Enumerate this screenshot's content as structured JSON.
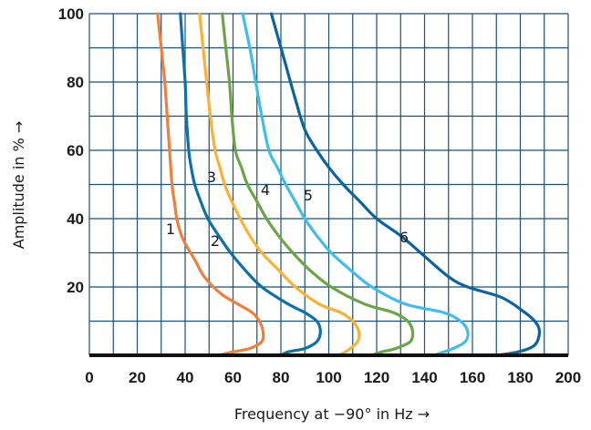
{
  "chart_data": {
    "type": "line",
    "xlabel": "Frequency at −90° in Hz →",
    "ylabel": "Amplitude in % →",
    "xlim": [
      0,
      200
    ],
    "ylim": [
      0,
      100
    ],
    "x_ticks": [
      "0",
      "20",
      "40",
      "60",
      "80",
      "100",
      "120",
      "140",
      "160",
      "180",
      "200"
    ],
    "y_ticks": [
      "20",
      "40",
      "60",
      "80",
      "100"
    ],
    "grid": true,
    "series": [
      {
        "label": "1",
        "color": "#f07f3c",
        "points": [
          [
            28.5,
            100
          ],
          [
            30,
            90
          ],
          [
            31.5,
            80
          ],
          [
            32.5,
            70
          ],
          [
            33.5,
            60
          ],
          [
            34.5,
            50
          ],
          [
            35.5,
            45
          ],
          [
            36.5,
            40
          ],
          [
            38.5,
            35
          ],
          [
            41,
            31.5
          ],
          [
            44,
            28
          ],
          [
            48,
            23
          ],
          [
            55,
            18
          ],
          [
            62,
            15
          ],
          [
            68,
            12.5
          ],
          [
            71,
            10
          ],
          [
            72.5,
            7
          ],
          [
            72,
            4
          ],
          [
            67,
            2
          ],
          [
            60,
            1
          ],
          [
            54,
            0
          ]
        ]
      },
      {
        "label": "2",
        "color": "#0b71a8",
        "points": [
          [
            38,
            100
          ],
          [
            39,
            90
          ],
          [
            40,
            80
          ],
          [
            40.5,
            70
          ],
          [
            41.5,
            60
          ],
          [
            42.5,
            55
          ],
          [
            44,
            50
          ],
          [
            46.5,
            45
          ],
          [
            49.5,
            40
          ],
          [
            54,
            35
          ],
          [
            59,
            30
          ],
          [
            65,
            25
          ],
          [
            72,
            20
          ],
          [
            83,
            15
          ],
          [
            90,
            12.5
          ],
          [
            95,
            10
          ],
          [
            96.5,
            7
          ],
          [
            95,
            4
          ],
          [
            90,
            2
          ],
          [
            83,
            1
          ],
          [
            80,
            0
          ]
        ]
      },
      {
        "label": "3",
        "color": "#f9b234",
        "points": [
          [
            46,
            100
          ],
          [
            47.5,
            90
          ],
          [
            49,
            80
          ],
          [
            50.5,
            70
          ],
          [
            52.5,
            60
          ],
          [
            54.5,
            55
          ],
          [
            56.5,
            50
          ],
          [
            59.5,
            45
          ],
          [
            63,
            40
          ],
          [
            67,
            35
          ],
          [
            72,
            30
          ],
          [
            79,
            25
          ],
          [
            86,
            20
          ],
          [
            96,
            15
          ],
          [
            105,
            12.5
          ],
          [
            110,
            10
          ],
          [
            112.5,
            7
          ],
          [
            112,
            4
          ],
          [
            108,
            1.5
          ],
          [
            104,
            0
          ]
        ]
      },
      {
        "label": "4",
        "color": "#6ca544",
        "points": [
          [
            55.5,
            100
          ],
          [
            57,
            90
          ],
          [
            58.5,
            80
          ],
          [
            59.5,
            70
          ],
          [
            61,
            60
          ],
          [
            63.5,
            55
          ],
          [
            66,
            50
          ],
          [
            70,
            45
          ],
          [
            74,
            40
          ],
          [
            79,
            35
          ],
          [
            85,
            30
          ],
          [
            92,
            25
          ],
          [
            101,
            20
          ],
          [
            115,
            15
          ],
          [
            127,
            12.5
          ],
          [
            133,
            10
          ],
          [
            135,
            7
          ],
          [
            134,
            4
          ],
          [
            128,
            2
          ],
          [
            122,
            1
          ],
          [
            118,
            0
          ]
        ]
      },
      {
        "label": "5",
        "color": "#3fbeed",
        "points": [
          [
            64,
            100
          ],
          [
            67,
            90
          ],
          [
            69.5,
            80
          ],
          [
            72,
            70
          ],
          [
            75,
            60
          ],
          [
            78.5,
            55
          ],
          [
            82,
            50
          ],
          [
            86,
            45
          ],
          [
            90,
            40
          ],
          [
            95,
            35
          ],
          [
            101,
            30
          ],
          [
            109,
            25
          ],
          [
            118,
            20
          ],
          [
            132,
            15
          ],
          [
            148,
            12.5
          ],
          [
            155,
            10
          ],
          [
            158,
            7
          ],
          [
            157,
            4
          ],
          [
            152,
            2
          ],
          [
            148,
            1
          ],
          [
            144,
            0
          ]
        ]
      },
      {
        "label": "6",
        "color": "#0b63a0",
        "points": [
          [
            76,
            100
          ],
          [
            78,
            95
          ],
          [
            82,
            85
          ],
          [
            86,
            75
          ],
          [
            90,
            66
          ],
          [
            95,
            60
          ],
          [
            100,
            55
          ],
          [
            106,
            50
          ],
          [
            113,
            45
          ],
          [
            120,
            40
          ],
          [
            130,
            35
          ],
          [
            140,
            29
          ],
          [
            150,
            23
          ],
          [
            158,
            20
          ],
          [
            172,
            17
          ],
          [
            181,
            13
          ],
          [
            186,
            10
          ],
          [
            188,
            7
          ],
          [
            186,
            3
          ],
          [
            179,
            1
          ],
          [
            170,
            0
          ]
        ]
      }
    ]
  }
}
